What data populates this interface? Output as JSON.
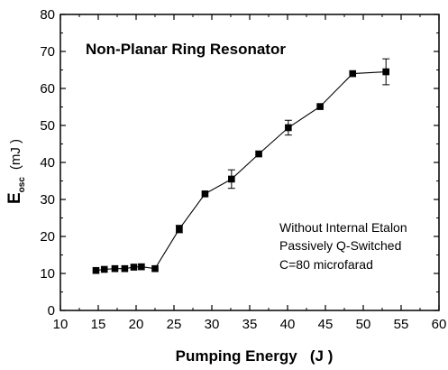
{
  "chart_data": {
    "type": "line",
    "title": "",
    "xlabel": "Pumping Energy   (J )",
    "ylabel_main": "E",
    "ylabel_sub": "osc",
    "ylabel_unit": "(mJ )",
    "xlim": [
      10,
      60
    ],
    "ylim": [
      0,
      80
    ],
    "xticks": [
      10,
      15,
      20,
      25,
      30,
      35,
      40,
      45,
      50,
      55,
      60
    ],
    "yticks": [
      0,
      10,
      20,
      30,
      40,
      50,
      60,
      70,
      80
    ],
    "grid": false,
    "series": [
      {
        "marker": "square",
        "x": [
          14.7,
          15.8,
          17.2,
          18.5,
          19.7,
          20.7,
          22.5,
          25.7,
          29.1,
          32.6,
          36.2,
          40.1,
          44.3,
          48.6,
          53.0
        ],
        "y": [
          10.8,
          11.1,
          11.3,
          11.3,
          11.7,
          11.8,
          11.3,
          22.0,
          31.5,
          35.5,
          42.3,
          49.4,
          55.1,
          64.0,
          64.5
        ],
        "yerr": [
          0,
          0,
          0,
          0,
          0,
          0,
          0,
          1.0,
          0,
          2.5,
          0,
          2.0,
          0,
          0,
          3.5
        ]
      }
    ],
    "annotations": {
      "title": "Non-Planar Ring Resonator",
      "notes": [
        "Without Internal Etalon",
        "Passively Q-Switched",
        "C=80 microfarad"
      ]
    }
  }
}
